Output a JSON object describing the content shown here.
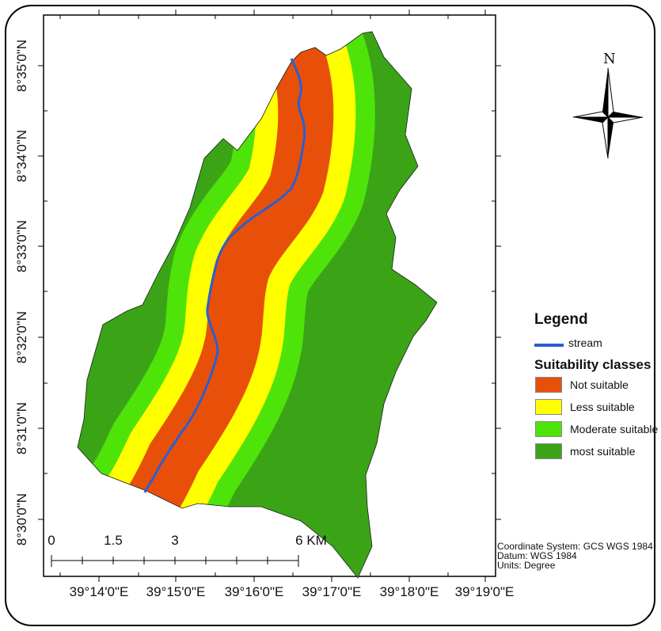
{
  "map": {
    "lat_labels": [
      "8°35'0\"N",
      "8°34'0\"N",
      "8°33'0\"N",
      "8°32'0\"N",
      "8°31'0\"N",
      "8°30'0\"N"
    ],
    "lon_labels": [
      "39°14'0\"E",
      "39°15'0\"E",
      "39°16'0\"E",
      "39°17'0\"E",
      "39°18'0\"E",
      "39°19'0\"E"
    ],
    "north_label": "N"
  },
  "legend": {
    "title": "Legend",
    "stream_label": "stream",
    "stream_color": "#2a5fd0",
    "classes_title": "Suitability classes",
    "classes": [
      {
        "label": "Not suitable",
        "color": "#e8500a"
      },
      {
        "label": "Less suitable",
        "color": "#ffff00"
      },
      {
        "label": "Moderate suitable",
        "color": "#4ee40a"
      },
      {
        "label": "most suitable",
        "color": "#3aa416"
      }
    ]
  },
  "scale_bar": {
    "labels": [
      "0",
      "1.5",
      "3",
      "6 KM"
    ]
  },
  "meta": {
    "coordinate_system": "Coordinate System: GCS WGS 1984",
    "datum": "Datum: WGS 1984",
    "units": "Units: Degree"
  }
}
